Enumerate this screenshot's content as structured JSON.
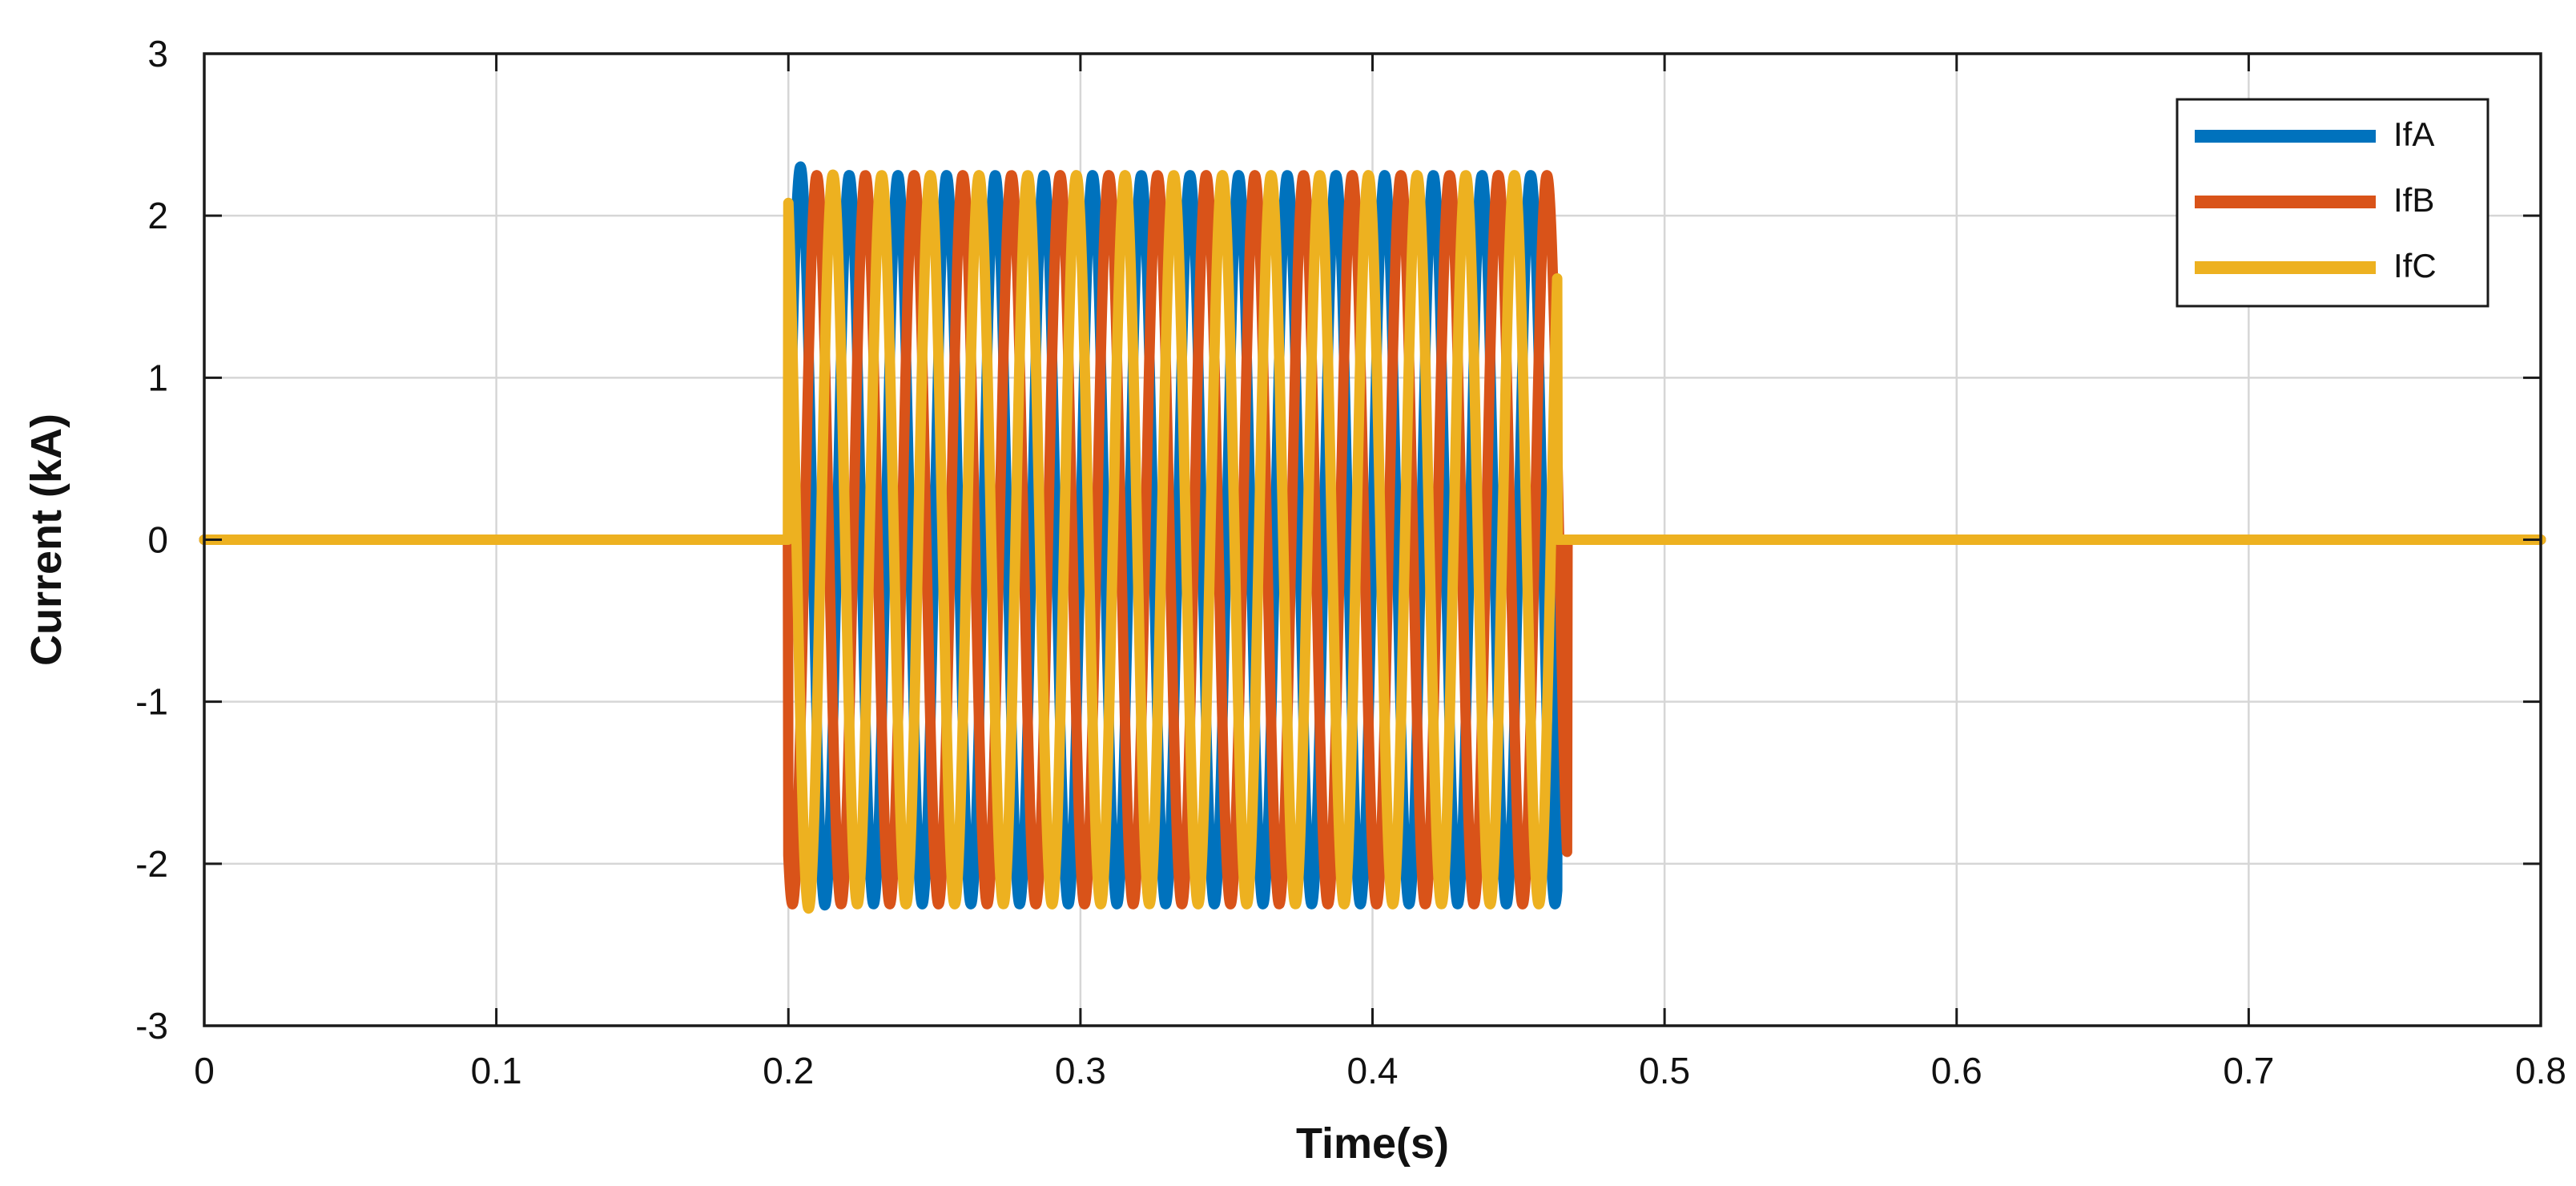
{
  "chart_data": {
    "type": "line",
    "title": "",
    "xlabel": "Time(s)",
    "ylabel": "Current (kA)",
    "xlim": [
      0,
      0.8
    ],
    "ylim": [
      -3,
      3
    ],
    "xticks": [
      0,
      0.1,
      0.2,
      0.3,
      0.4,
      0.5,
      0.6,
      0.7,
      0.8
    ],
    "xtick_labels": [
      "0",
      "0.1",
      "0.2",
      "0.3",
      "0.4",
      "0.5",
      "0.6",
      "0.7",
      "0.8"
    ],
    "yticks": [
      -3,
      -2,
      -1,
      0,
      1,
      2,
      3
    ],
    "ytick_labels": [
      "-3",
      "-2",
      "-1",
      "0",
      "1",
      "2",
      "3"
    ],
    "grid": true,
    "legend_position": "top-right",
    "fault": {
      "start_time": 0.2,
      "end_time_A": 0.4633,
      "end_time_B": 0.4667,
      "end_time_C": 0.4633,
      "frequency_hz": 60,
      "steady_amplitude_kA": 2.25,
      "peak_A_kA": 2.4,
      "peak_C_kA": -2.4,
      "pre_fault_value_kA": 0,
      "post_fault_value_kA": 0
    },
    "series": [
      {
        "name": "IfA",
        "color": "#0072BD",
        "phase_deg": 0
      },
      {
        "name": "IfB",
        "color": "#D95319",
        "phase_deg": -120
      },
      {
        "name": "IfC",
        "color": "#EDB120",
        "phase_deg": 120
      }
    ]
  }
}
